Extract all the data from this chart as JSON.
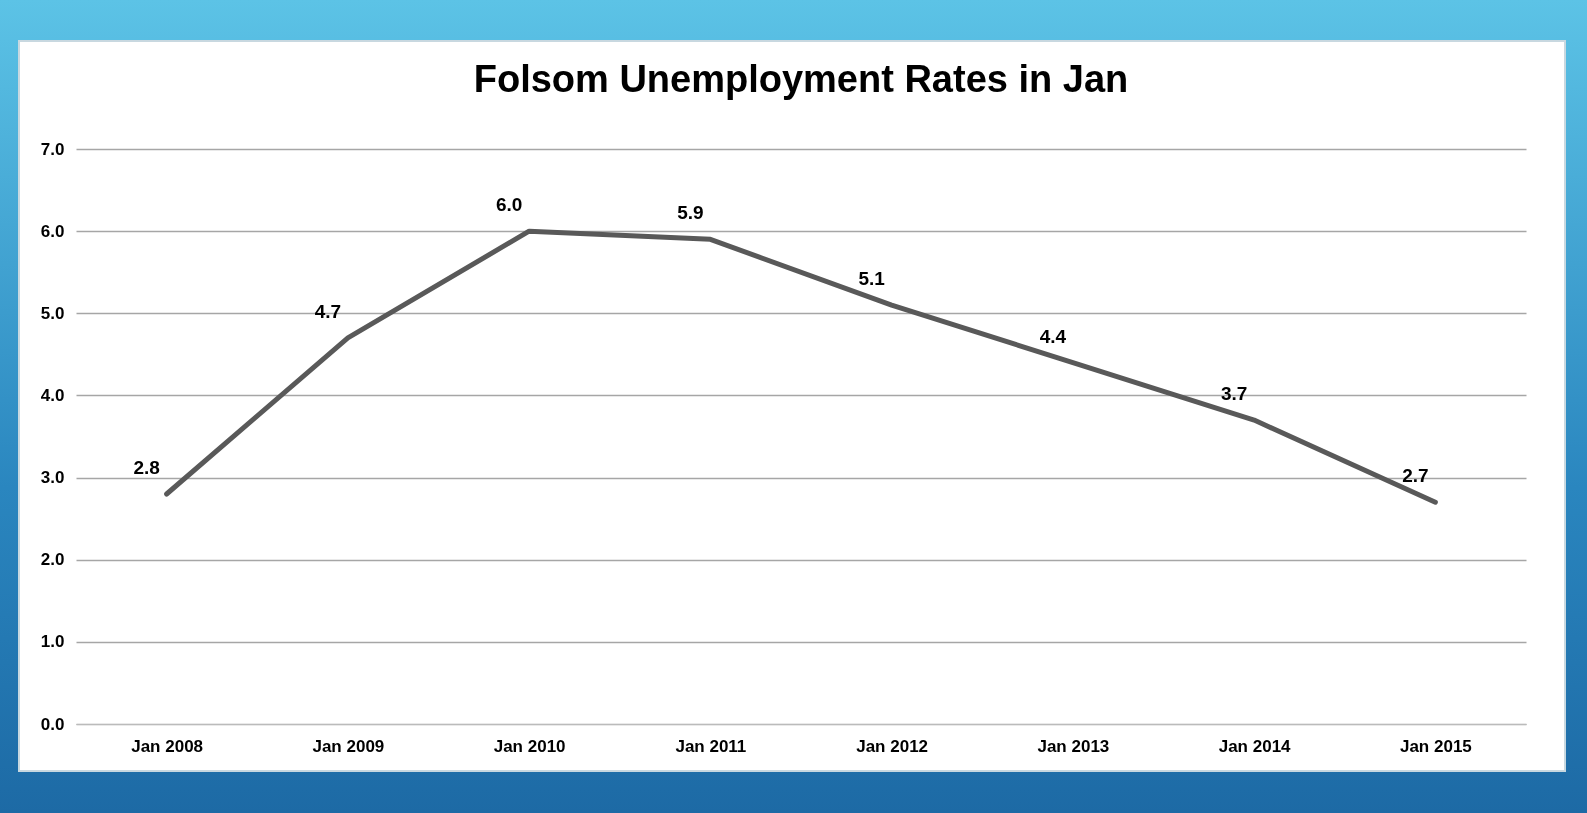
{
  "chart_data": {
    "type": "line",
    "title": "Folsom Unemployment Rates in Jan",
    "categories": [
      "Jan 2008",
      "Jan 2009",
      "Jan 2010",
      "Jan 2011",
      "Jan 2012",
      "Jan 2013",
      "Jan 2014",
      "Jan 2015"
    ],
    "series": [
      {
        "color": "#595959",
        "values": [
          2.8,
          4.7,
          6.0,
          5.9,
          5.1,
          4.4,
          3.7,
          2.7
        ],
        "value_labels": [
          "2.8",
          "4.7",
          "6.0",
          "5.9",
          "5.1",
          "4.4",
          "3.7",
          "2.7"
        ]
      }
    ],
    "ylim": [
      0,
      7
    ],
    "yticks": [
      {
        "value": 0,
        "label": "0.0"
      },
      {
        "value": 1,
        "label": "1.0"
      },
      {
        "value": 2,
        "label": "2.0"
      },
      {
        "value": 3,
        "label": "3.0"
      },
      {
        "value": 4,
        "label": "4.0"
      },
      {
        "value": 5,
        "label": "5.0"
      },
      {
        "value": 6,
        "label": "6.0"
      },
      {
        "value": 7,
        "label": "7.0"
      }
    ],
    "grid": "y",
    "marker": "none",
    "line_style": "solid"
  }
}
